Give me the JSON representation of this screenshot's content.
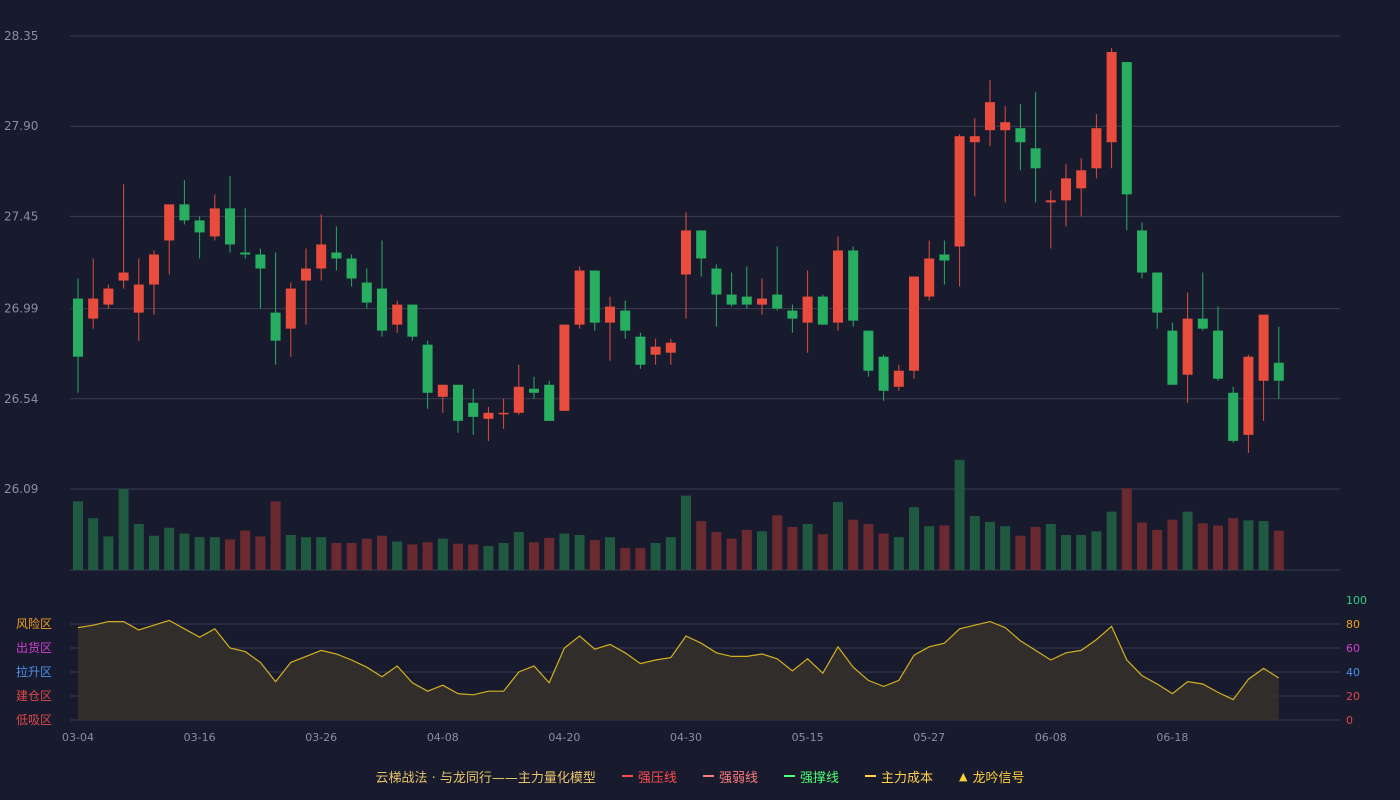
{
  "chart_data": {
    "type": "candlestick",
    "price_axis": {
      "ticks": [
        "28.35",
        "27.90",
        "27.45",
        "26.99",
        "26.54",
        "26.09"
      ],
      "range": [
        26.09,
        28.35
      ]
    },
    "x_tick_labels": [
      {
        "index": 0,
        "label": "03-04"
      },
      {
        "index": 8,
        "label": "03-16"
      },
      {
        "index": 16,
        "label": "03-26"
      },
      {
        "index": 24,
        "label": "04-08"
      },
      {
        "index": 32,
        "label": "04-20"
      },
      {
        "index": 40,
        "label": "04-30"
      },
      {
        "index": 48,
        "label": "05-15"
      },
      {
        "index": 56,
        "label": "05-27"
      },
      {
        "index": 64,
        "label": "06-08"
      },
      {
        "index": 72,
        "label": "06-18"
      }
    ],
    "candles": [
      [
        27.04,
        26.75,
        27.14,
        26.57
      ],
      [
        26.94,
        27.04,
        27.24,
        26.89
      ],
      [
        27.01,
        27.09,
        27.11,
        26.99
      ],
      [
        27.13,
        27.17,
        27.61,
        27.09
      ],
      [
        26.97,
        27.11,
        27.24,
        26.83
      ],
      [
        27.11,
        27.26,
        27.28,
        26.96
      ],
      [
        27.33,
        27.51,
        27.51,
        27.16
      ],
      [
        27.51,
        27.43,
        27.63,
        27.41
      ],
      [
        27.43,
        27.37,
        27.45,
        27.24
      ],
      [
        27.35,
        27.49,
        27.56,
        27.33
      ],
      [
        27.49,
        27.31,
        27.65,
        27.27
      ],
      [
        27.27,
        27.26,
        27.49,
        27.24
      ],
      [
        27.26,
        27.19,
        27.29,
        26.99
      ],
      [
        26.97,
        26.83,
        27.27,
        26.71
      ],
      [
        26.89,
        27.09,
        27.12,
        26.75
      ],
      [
        27.13,
        27.19,
        27.29,
        26.91
      ],
      [
        27.19,
        27.31,
        27.46,
        27.13
      ],
      [
        27.27,
        27.24,
        27.4,
        27.18
      ],
      [
        27.24,
        27.14,
        27.26,
        27.1
      ],
      [
        27.12,
        27.02,
        27.19,
        26.99
      ],
      [
        27.09,
        26.88,
        27.33,
        26.85
      ],
      [
        26.91,
        27.01,
        27.03,
        26.87
      ],
      [
        27.01,
        26.85,
        27.01,
        26.83
      ],
      [
        26.81,
        26.57,
        26.83,
        26.49
      ],
      [
        26.55,
        26.61,
        26.61,
        26.47
      ],
      [
        26.61,
        26.43,
        26.61,
        26.37
      ],
      [
        26.52,
        26.45,
        26.59,
        26.36
      ],
      [
        26.44,
        26.47,
        26.5,
        26.33
      ],
      [
        26.47,
        26.47,
        26.54,
        26.39
      ],
      [
        26.47,
        26.6,
        26.71,
        26.46
      ],
      [
        26.59,
        26.57,
        26.65,
        26.54
      ],
      [
        26.61,
        26.43,
        26.63,
        26.43
      ],
      [
        26.48,
        26.91,
        26.91,
        26.48
      ],
      [
        26.91,
        27.18,
        27.2,
        26.89
      ],
      [
        27.18,
        26.92,
        27.18,
        26.88
      ],
      [
        26.92,
        27.0,
        27.05,
        26.73
      ],
      [
        26.98,
        26.88,
        27.03,
        26.84
      ],
      [
        26.85,
        26.71,
        26.87,
        26.69
      ],
      [
        26.76,
        26.8,
        26.84,
        26.71
      ],
      [
        26.77,
        26.82,
        26.84,
        26.71
      ],
      [
        27.16,
        27.38,
        27.47,
        26.94
      ],
      [
        27.38,
        27.24,
        27.38,
        27.15
      ],
      [
        27.19,
        27.06,
        27.21,
        26.9
      ],
      [
        27.06,
        27.01,
        27.17,
        27.0
      ],
      [
        27.05,
        27.01,
        27.2,
        26.99
      ],
      [
        27.01,
        27.04,
        27.14,
        26.96
      ],
      [
        27.06,
        26.99,
        27.3,
        26.98
      ],
      [
        26.98,
        26.94,
        27.01,
        26.87
      ],
      [
        26.92,
        27.05,
        27.18,
        26.77
      ],
      [
        27.05,
        26.91,
        27.06,
        26.91
      ],
      [
        26.92,
        27.28,
        27.35,
        26.88
      ],
      [
        27.28,
        26.93,
        27.3,
        26.9
      ],
      [
        26.88,
        26.68,
        26.88,
        26.65
      ],
      [
        26.75,
        26.58,
        26.76,
        26.53
      ],
      [
        26.6,
        26.68,
        26.71,
        26.58
      ],
      [
        26.68,
        27.15,
        27.15,
        26.64
      ],
      [
        27.05,
        27.24,
        27.33,
        27.03
      ],
      [
        27.26,
        27.23,
        27.33,
        27.11
      ],
      [
        27.3,
        27.85,
        27.86,
        27.1
      ],
      [
        27.82,
        27.85,
        27.94,
        27.55
      ],
      [
        27.88,
        28.02,
        28.13,
        27.8
      ],
      [
        27.88,
        27.92,
        28.0,
        27.52
      ],
      [
        27.89,
        27.82,
        28.01,
        27.68
      ],
      [
        27.79,
        27.69,
        28.07,
        27.52
      ],
      [
        27.52,
        27.53,
        27.58,
        27.29
      ],
      [
        27.53,
        27.64,
        27.71,
        27.4
      ],
      [
        27.59,
        27.68,
        27.74,
        27.45
      ],
      [
        27.69,
        27.89,
        27.96,
        27.64
      ],
      [
        27.82,
        28.27,
        28.29,
        27.69
      ],
      [
        28.22,
        27.56,
        28.22,
        27.38
      ],
      [
        27.38,
        27.17,
        27.42,
        27.14
      ],
      [
        27.17,
        26.97,
        27.17,
        26.89
      ],
      [
        26.88,
        26.61,
        26.92,
        26.61
      ],
      [
        26.66,
        26.94,
        27.07,
        26.52
      ],
      [
        26.94,
        26.89,
        27.17,
        26.88
      ],
      [
        26.88,
        26.64,
        27.0,
        26.63
      ],
      [
        26.57,
        26.33,
        26.6,
        26.32
      ],
      [
        26.36,
        26.75,
        26.76,
        26.27
      ],
      [
        26.63,
        26.96,
        26.94,
        26.43
      ],
      [
        26.72,
        26.63,
        26.9,
        26.54
      ]
    ],
    "volume": [
      [
        0.94,
        "d"
      ],
      [
        0.71,
        "d"
      ],
      [
        0.46,
        "d"
      ],
      [
        1.11,
        "d"
      ],
      [
        0.63,
        "d"
      ],
      [
        0.47,
        "d"
      ],
      [
        0.58,
        "d"
      ],
      [
        0.5,
        "d"
      ],
      [
        0.45,
        "d"
      ],
      [
        0.45,
        "d"
      ],
      [
        0.42,
        "u"
      ],
      [
        0.54,
        "u"
      ],
      [
        0.46,
        "u"
      ],
      [
        0.94,
        "u"
      ],
      [
        0.48,
        "d"
      ],
      [
        0.45,
        "d"
      ],
      [
        0.45,
        "d"
      ],
      [
        0.37,
        "u"
      ],
      [
        0.37,
        "u"
      ],
      [
        0.43,
        "u"
      ],
      [
        0.47,
        "u"
      ],
      [
        0.39,
        "d"
      ],
      [
        0.35,
        "u"
      ],
      [
        0.38,
        "u"
      ],
      [
        0.43,
        "d"
      ],
      [
        0.36,
        "u"
      ],
      [
        0.35,
        "u"
      ],
      [
        0.33,
        "d"
      ],
      [
        0.37,
        "d"
      ],
      [
        0.52,
        "d"
      ],
      [
        0.38,
        "u"
      ],
      [
        0.44,
        "u"
      ],
      [
        0.5,
        "d"
      ],
      [
        0.48,
        "d"
      ],
      [
        0.41,
        "u"
      ],
      [
        0.45,
        "d"
      ],
      [
        0.3,
        "u"
      ],
      [
        0.3,
        "u"
      ],
      [
        0.37,
        "d"
      ],
      [
        0.45,
        "d"
      ],
      [
        1.02,
        "d"
      ],
      [
        0.67,
        "u"
      ],
      [
        0.52,
        "u"
      ],
      [
        0.43,
        "u"
      ],
      [
        0.55,
        "u"
      ],
      [
        0.53,
        "d"
      ],
      [
        0.75,
        "u"
      ],
      [
        0.59,
        "u"
      ],
      [
        0.63,
        "d"
      ],
      [
        0.49,
        "u"
      ],
      [
        0.93,
        "d"
      ],
      [
        0.69,
        "u"
      ],
      [
        0.63,
        "u"
      ],
      [
        0.5,
        "u"
      ],
      [
        0.45,
        "d"
      ],
      [
        0.86,
        "d"
      ],
      [
        0.6,
        "d"
      ],
      [
        0.61,
        "u"
      ],
      [
        1.51,
        "d"
      ],
      [
        0.74,
        "d"
      ],
      [
        0.66,
        "d"
      ],
      [
        0.6,
        "d"
      ],
      [
        0.47,
        "u"
      ],
      [
        0.59,
        "u"
      ],
      [
        0.63,
        "d"
      ],
      [
        0.48,
        "d"
      ],
      [
        0.48,
        "d"
      ],
      [
        0.53,
        "d"
      ],
      [
        0.8,
        "d"
      ],
      [
        1.12,
        "u"
      ],
      [
        0.65,
        "u"
      ],
      [
        0.55,
        "u"
      ],
      [
        0.69,
        "u"
      ],
      [
        0.8,
        "d"
      ],
      [
        0.64,
        "u"
      ],
      [
        0.61,
        "u"
      ],
      [
        0.71,
        "u"
      ],
      [
        0.68,
        "d"
      ],
      [
        0.67,
        "d"
      ],
      [
        0.54,
        "u"
      ]
    ],
    "zone_labels": [
      "风险区",
      "出货区",
      "拉升区",
      "建仓区",
      "低吸区"
    ],
    "zone_label_colors": [
      "#f0a020",
      "#d040d0",
      "#4c90e8",
      "#e04848",
      "#e04848"
    ],
    "indicator_axis": {
      "ticks": [
        "100",
        "80",
        "60",
        "40",
        "20",
        "0"
      ],
      "tick_colors": [
        "#2fd08a",
        "#f0a020",
        "#d040d0",
        "#4c90e8",
        "#e04848",
        "#e04848"
      ],
      "range": [
        0,
        100
      ]
    },
    "indicator": [
      77,
      79,
      82,
      82,
      75,
      79,
      83,
      76,
      69,
      76,
      60,
      57,
      48,
      32,
      48,
      53,
      58,
      55,
      50,
      44,
      36,
      45,
      31,
      24,
      29,
      22,
      21,
      24,
      24,
      40,
      45,
      31,
      60,
      70,
      59,
      63,
      56,
      47,
      50,
      52,
      70,
      64,
      56,
      53,
      53,
      55,
      51,
      41,
      51,
      39,
      61,
      44,
      33,
      28,
      33,
      54,
      61,
      64,
      76,
      79,
      82,
      77,
      66,
      58,
      50,
      56,
      58,
      67,
      78,
      50,
      37,
      30,
      22,
      32,
      30,
      23,
      17,
      34,
      43,
      35
    ],
    "colors": {
      "up": "#e74c3c",
      "down": "#27ae60",
      "vol_up": "#6a2a30",
      "vol_down": "#1f5a40",
      "line": "#d4b020",
      "fill": "#33302a"
    }
  },
  "legend": {
    "title": "云梯战法 · 与龙同行——主力量化模型",
    "items": [
      {
        "label": "强压线",
        "color": "#ff4b4b",
        "style": "solid"
      },
      {
        "label": "强弱线",
        "color": "#ff7b7b",
        "style": "dashed"
      },
      {
        "label": "强撑线",
        "color": "#4cff70",
        "style": "solid"
      },
      {
        "label": "主力成本",
        "color": "#ffd24a",
        "style": "dashed"
      },
      {
        "label": "龙吟信号",
        "color": "#ffcf3a",
        "style": "triangle"
      }
    ]
  }
}
